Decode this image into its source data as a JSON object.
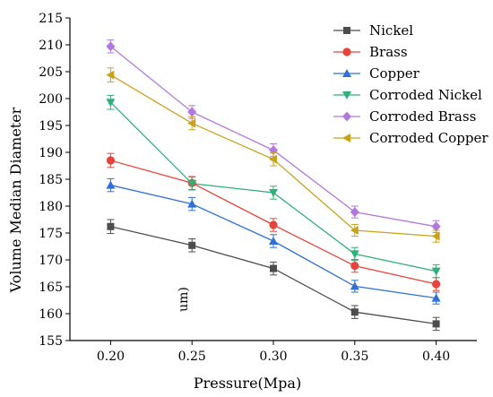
{
  "chart_data": {
    "type": "line",
    "title": "",
    "xlabel": "Pressure(Mpa)",
    "ylabel": "Volume Median Diameter",
    "unit_annotation": "um)",
    "x": [
      0.2,
      0.25,
      0.3,
      0.35,
      0.4
    ],
    "x_tick_labels": [
      "0.20",
      "0.25",
      "0.30",
      "0.35",
      "0.40"
    ],
    "xlim": [
      0.175,
      0.425
    ],
    "ylim": [
      155,
      215
    ],
    "y_ticks": [
      155,
      160,
      165,
      170,
      175,
      180,
      185,
      190,
      195,
      200,
      205,
      210,
      215
    ],
    "grid": false,
    "legend_position": "top-right",
    "series": [
      {
        "name": "Nickel",
        "color": "#4d4d4d",
        "marker": "square",
        "values": [
          176.2,
          172.7,
          168.4,
          160.3,
          158.1
        ],
        "error": [
          1.3,
          1.2,
          1.2,
          1.2,
          1.2
        ]
      },
      {
        "name": "Brass",
        "color": "#e8433a",
        "marker": "circle",
        "values": [
          188.5,
          184.3,
          176.5,
          168.9,
          165.5
        ],
        "error": [
          1.3,
          1.2,
          1.2,
          1.2,
          1.2
        ]
      },
      {
        "name": "Copper",
        "color": "#2f6fd8",
        "marker": "triangle-up",
        "values": [
          183.9,
          180.4,
          173.5,
          165.1,
          162.9
        ],
        "error": [
          1.2,
          1.2,
          1.2,
          1.1,
          1.1
        ]
      },
      {
        "name": "Corroded Nickel",
        "color": "#2fb07a",
        "marker": "triangle-down",
        "values": [
          199.3,
          184.2,
          182.5,
          171.1,
          167.9
        ],
        "error": [
          1.3,
          1.2,
          1.2,
          1.2,
          1.2
        ]
      },
      {
        "name": "Corroded Brass",
        "color": "#b377e0",
        "marker": "diamond",
        "values": [
          209.7,
          197.5,
          190.4,
          178.9,
          176.2
        ],
        "error": [
          1.2,
          1.2,
          1.2,
          1.1,
          1.1
        ]
      },
      {
        "name": "Corroded Copper",
        "color": "#c9a21c",
        "marker": "triangle-left",
        "values": [
          204.4,
          195.4,
          188.7,
          175.5,
          174.4
        ],
        "error": [
          1.3,
          1.2,
          1.2,
          1.1,
          1.1
        ]
      }
    ]
  }
}
